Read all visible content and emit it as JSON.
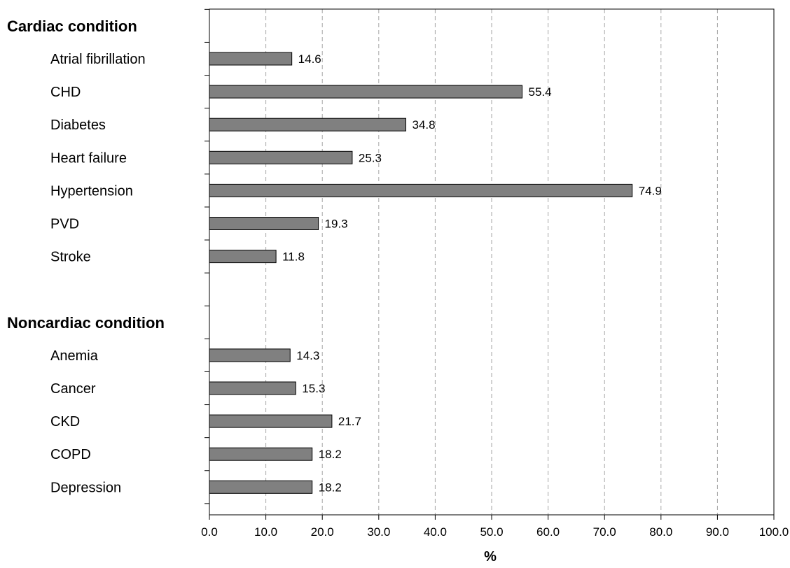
{
  "chart_data": {
    "type": "bar",
    "orientation": "horizontal",
    "xlabel": "%",
    "ylabel": "",
    "xlim": [
      0,
      100
    ],
    "x_ticks": [
      "0.0",
      "10.0",
      "20.0",
      "30.0",
      "40.0",
      "50.0",
      "60.0",
      "70.0",
      "80.0",
      "90.0",
      "100.0"
    ],
    "grid": "vertical dashed",
    "legend": "none",
    "bar_color": "#808080",
    "groups": [
      {
        "label": "Cardiac condition",
        "categories": [
          "Atrial fibrillation",
          "CHD",
          "Diabetes",
          "Heart failure",
          "Hypertension",
          "PVD",
          "Stroke"
        ],
        "values": [
          14.6,
          55.4,
          34.8,
          25.3,
          74.9,
          19.3,
          11.8
        ],
        "value_labels": [
          "14.6",
          "55.4",
          "34.8",
          "25.3",
          "74.9",
          "19.3",
          "11.8"
        ]
      },
      {
        "label": "Noncardiac condition",
        "categories": [
          "Anemia",
          "Cancer",
          "CKD",
          "COPD",
          "Depression"
        ],
        "values": [
          14.3,
          15.3,
          21.7,
          18.2,
          18.2
        ],
        "value_labels": [
          "14.3",
          "15.3",
          "21.7",
          "18.2",
          "18.2"
        ]
      }
    ]
  }
}
